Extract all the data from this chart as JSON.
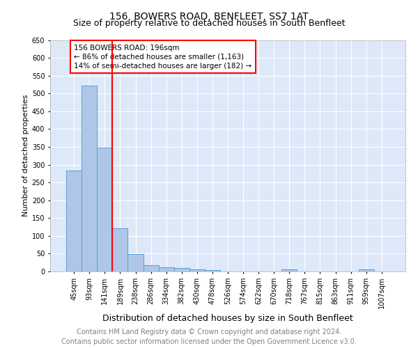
{
  "title": "156, BOWERS ROAD, BENFLEET, SS7 1AT",
  "subtitle": "Size of property relative to detached houses in South Benfleet",
  "xlabel": "Distribution of detached houses by size in South Benfleet",
  "ylabel": "Number of detached properties",
  "footer_line1": "Contains HM Land Registry data © Crown copyright and database right 2024.",
  "footer_line2": "Contains public sector information licensed under the Open Government Licence v3.0.",
  "categories": [
    "45sqm",
    "93sqm",
    "141sqm",
    "189sqm",
    "238sqm",
    "286sqm",
    "334sqm",
    "382sqm",
    "430sqm",
    "478sqm",
    "526sqm",
    "574sqm",
    "622sqm",
    "670sqm",
    "718sqm",
    "767sqm",
    "815sqm",
    "863sqm",
    "911sqm",
    "959sqm",
    "1007sqm"
  ],
  "values": [
    283,
    522,
    347,
    122,
    49,
    18,
    11,
    10,
    5,
    4,
    0,
    0,
    0,
    0,
    5,
    0,
    0,
    0,
    0,
    5,
    0
  ],
  "bar_color": "#aec6e8",
  "bar_edge_color": "#5a9fd4",
  "vline_color": "red",
  "annotation_text": "156 BOWERS ROAD: 196sqm\n← 86% of detached houses are smaller (1,163)\n14% of semi-detached houses are larger (182) →",
  "annotation_box_color": "white",
  "annotation_box_edge_color": "red",
  "ylim": [
    0,
    650
  ],
  "yticks": [
    0,
    50,
    100,
    150,
    200,
    250,
    300,
    350,
    400,
    450,
    500,
    550,
    600,
    650
  ],
  "bg_color": "#dde8f8",
  "title_fontsize": 10,
  "subtitle_fontsize": 9,
  "xlabel_fontsize": 9,
  "ylabel_fontsize": 8,
  "tick_fontsize": 7,
  "annot_fontsize": 7.5,
  "footer_fontsize": 7
}
